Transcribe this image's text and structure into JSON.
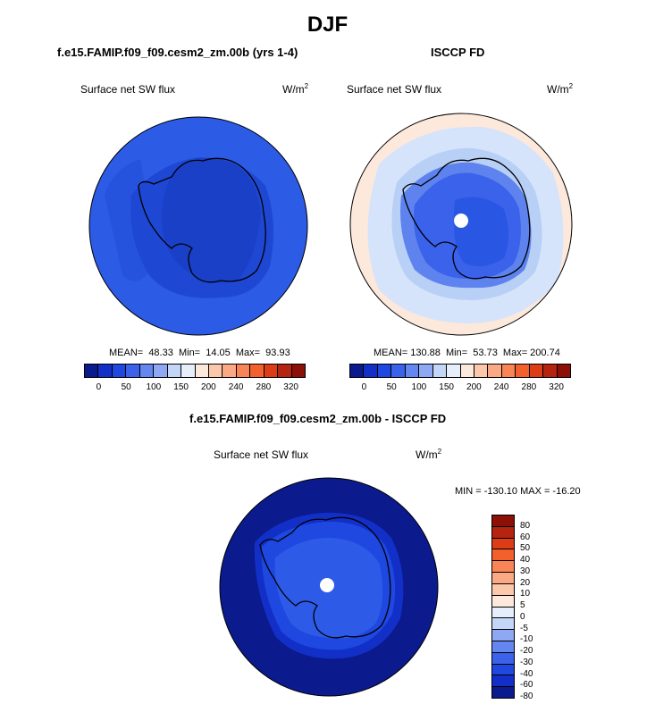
{
  "main_title": "DJF",
  "panels": [
    {
      "title": "f.e15.FAMIP.f09_f09.cesm2_zm.00b (yrs 1-4)",
      "variable": "Surface net SW flux",
      "units_base": "W/m",
      "units_exp": "2",
      "stats": "MEAN=  48.33  Min=  14.05  Max=  93.93"
    },
    {
      "title": "ISCCP FD",
      "variable": "Surface net SW flux",
      "units_base": "W/m",
      "units_exp": "2",
      "stats": "MEAN= 130.88  Min=  53.73  Max= 200.74"
    },
    {
      "title": "f.e15.FAMIP.f09_f09.cesm2_zm.00b - ISCCP FD",
      "variable": "Surface net SW flux",
      "units_base": "W/m",
      "units_exp": "2",
      "stats": "MIN = -130.10 MAX = -16.20"
    }
  ],
  "abs_colorbar": {
    "colors": [
      "#0b1a8c",
      "#1230c8",
      "#1e48e0",
      "#3a62ea",
      "#6486f0",
      "#8ea8f4",
      "#c4d6f8",
      "#e6eefb",
      "#fde8dc",
      "#fcc8ac",
      "#fba884",
      "#f98456",
      "#f3602e",
      "#dc3c16",
      "#b42410",
      "#8c0f08"
    ],
    "tick_labels": [
      "0",
      "50",
      "100",
      "150",
      "200",
      "240",
      "280",
      "320"
    ]
  },
  "diff_colorbar": {
    "colors": [
      "#8c0f08",
      "#b42410",
      "#dc3c16",
      "#f3602e",
      "#f98456",
      "#fba884",
      "#fcc8ac",
      "#fde8dc",
      "#e6eefb",
      "#c4d6f8",
      "#8ea8f4",
      "#6486f0",
      "#3a62ea",
      "#1e48e0",
      "#1230c8",
      "#0b1a8c"
    ],
    "tick_labels": [
      "80",
      "60",
      "50",
      "40",
      "30",
      "20",
      "10",
      "5",
      "0",
      "-5",
      "-10",
      "-20",
      "-30",
      "-40",
      "-60",
      "-80"
    ]
  }
}
